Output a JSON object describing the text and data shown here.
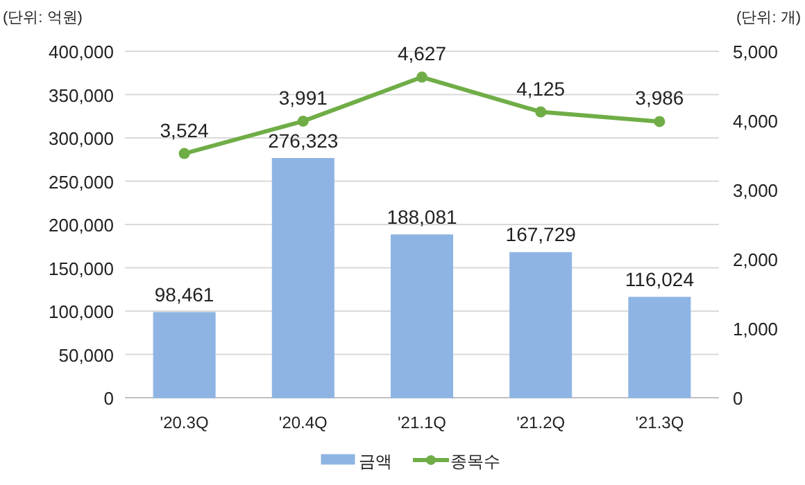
{
  "chart_data": {
    "type": "bar",
    "ylabel": "(단위: 억원)",
    "y2label": "(단위: 개)",
    "categories": [
      "'20.3Q",
      "'20.4Q",
      "'21.1Q",
      "'21.2Q",
      "'21.3Q"
    ],
    "series": [
      {
        "name": "금액",
        "color": "#8eb4e3",
        "values": [
          98461,
          276323,
          188081,
          167729,
          116024
        ],
        "value_labels": [
          "98,461",
          "276,323",
          "188,081",
          "167,729",
          "116,024"
        ]
      },
      {
        "name": "종목수",
        "type": "line",
        "axis": "y2",
        "color": "#70ad47",
        "marker": "circle",
        "values": [
          3524,
          3991,
          4627,
          4125,
          3986
        ],
        "value_labels": [
          "3,524",
          "3,991",
          "4,627",
          "4,125",
          "3,986"
        ]
      }
    ],
    "ylim": [
      0,
      400000
    ],
    "yticks": [
      {
        "value": 0,
        "label": "0"
      },
      {
        "value": 50000,
        "label": "50,000"
      },
      {
        "value": 100000,
        "label": "100,000"
      },
      {
        "value": 150000,
        "label": "150,000"
      },
      {
        "value": 200000,
        "label": "200,000"
      },
      {
        "value": 250000,
        "label": "250,000"
      },
      {
        "value": 300000,
        "label": "300,000"
      },
      {
        "value": 350000,
        "label": "350,000"
      },
      {
        "value": 400000,
        "label": "400,000"
      }
    ],
    "y2lim": [
      0,
      5000
    ],
    "y2ticks": [
      {
        "value": 0,
        "label": "0"
      },
      {
        "value": 1000,
        "label": "1,000"
      },
      {
        "value": 2000,
        "label": "2,000"
      },
      {
        "value": 3000,
        "label": "3,000"
      },
      {
        "value": 4000,
        "label": "4,000"
      },
      {
        "value": 5000,
        "label": "5,000"
      }
    ],
    "grid": "y",
    "legend": "bottom"
  }
}
